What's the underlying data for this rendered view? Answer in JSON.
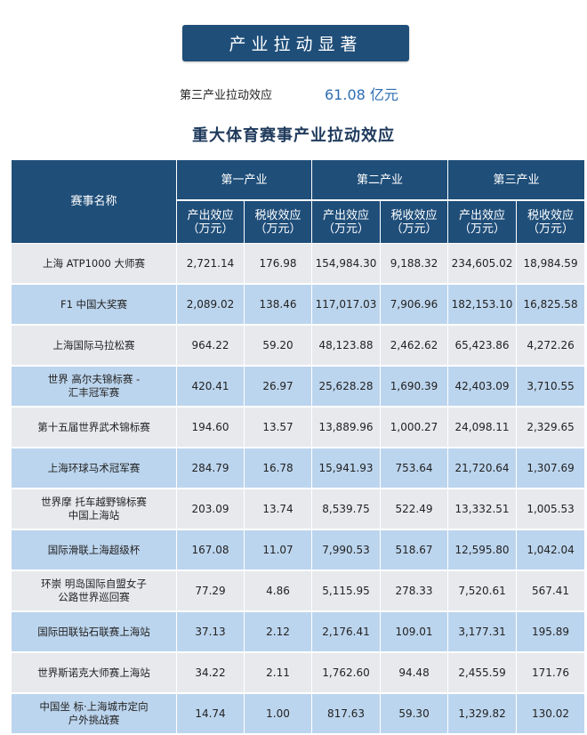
{
  "banner": {
    "title": "产业拉动显著"
  },
  "stat": {
    "label": "第三产业拉动效应",
    "value": "61.08 亿元"
  },
  "subtitle": "重大体育赛事产业拉动效应",
  "table": {
    "name_header": "赛事名称",
    "groups": [
      "第一产业",
      "第二产业",
      "第三产业"
    ],
    "sub_headers": [
      {
        "line1": "产出效应",
        "line2": "（万元）"
      },
      {
        "line1": "税收效应",
        "line2": "（万元）"
      },
      {
        "line1": "产出效应",
        "line2": "（万元）"
      },
      {
        "line1": "税收效应",
        "line2": "（万元）"
      },
      {
        "line1": "产出效应",
        "line2": "（万元）"
      },
      {
        "line1": "税收效应",
        "line2": "（万元）"
      }
    ],
    "rows": [
      {
        "name": [
          "上海 ATP1000 大师赛"
        ],
        "values": [
          "2,721.14",
          "176.98",
          "154,984.30",
          "9,188.32",
          "234,605.02",
          "18,984.59"
        ]
      },
      {
        "name": [
          "F1 中国大奖赛"
        ],
        "values": [
          "2,089.02",
          "138.46",
          "117,017.03",
          "7,906.96",
          "182,153.10",
          "16,825.58"
        ]
      },
      {
        "name": [
          "上海国际马拉松赛"
        ],
        "values": [
          "964.22",
          "59.20",
          "48,123.88",
          "2,462.62",
          "65,423.86",
          "4,272.26"
        ]
      },
      {
        "name": [
          "世界 高尔夫锦标赛 -",
          "汇丰冠军赛"
        ],
        "values": [
          "420.41",
          "26.97",
          "25,628.28",
          "1,690.39",
          "42,403.09",
          "3,710.55"
        ]
      },
      {
        "name": [
          "第十五届世界武术锦标赛"
        ],
        "values": [
          "194.60",
          "13.57",
          "13,889.96",
          "1,000.27",
          "24,098.11",
          "2,329.65"
        ]
      },
      {
        "name": [
          "上海环球马术冠军赛"
        ],
        "values": [
          "284.79",
          "16.78",
          "15,941.93",
          "753.64",
          "21,720.64",
          "1,307.69"
        ]
      },
      {
        "name": [
          "世界摩 托车越野锦标赛",
          "中国上海站"
        ],
        "values": [
          "203.09",
          "13.74",
          "8,539.75",
          "522.49",
          "13,332.51",
          "1,005.53"
        ]
      },
      {
        "name": [
          "国际滑联上海超级杯"
        ],
        "values": [
          "167.08",
          "11.07",
          "7,990.53",
          "518.67",
          "12,595.80",
          "1,042.04"
        ]
      },
      {
        "name": [
          "环崇 明岛国际自盟女子",
          "公路世界巡回赛"
        ],
        "values": [
          "77.29",
          "4.86",
          "5,115.95",
          "278.33",
          "7,520.61",
          "567.41"
        ]
      },
      {
        "name": [
          "国际田联钻石联赛上海站"
        ],
        "values": [
          "37.13",
          "2.12",
          "2,176.41",
          "109.01",
          "3,177.31",
          "195.89"
        ]
      },
      {
        "name": [
          "世界斯诺克大师赛上海站"
        ],
        "values": [
          "34.22",
          "2.11",
          "1,762.60",
          "94.48",
          "2,455.59",
          "171.76"
        ]
      },
      {
        "name": [
          "中国坐 标·上海城市定向",
          "户外挑战赛"
        ],
        "values": [
          "14.74",
          "1.00",
          "817.63",
          "59.30",
          "1,329.82",
          "130.02"
        ]
      }
    ]
  }
}
